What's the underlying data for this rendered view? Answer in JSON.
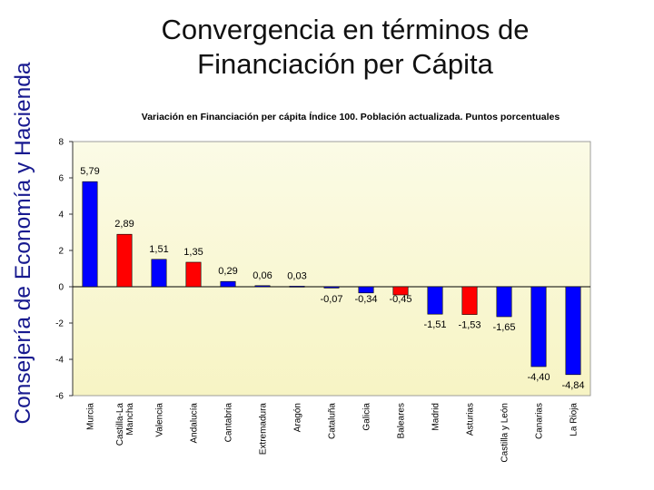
{
  "side_title": "Consejería de Economía y Hacienda",
  "slide_title": [
    "Convergencia en términos de",
    "Financiación per Cápita"
  ],
  "chart_data": {
    "type": "bar",
    "title": "Variación en Financiación per cápita Índice 100. Población actualizada. Puntos porcentuales",
    "xlabel": "",
    "ylabel": "",
    "categories": [
      "Murcia",
      "Castilla-La Mancha",
      "Valencia",
      "Andalucía",
      "Cantabria",
      "Extremadura",
      "Aragón",
      "Cataluña",
      "Galicia",
      "Baleares",
      "Madrid",
      "Asturias",
      "Castilla y León",
      "Canarias",
      "La Rioja"
    ],
    "category_labels": [
      [
        "Murcia"
      ],
      [
        "Castilla-La",
        "Mancha"
      ],
      [
        "Valencia"
      ],
      [
        "Andalucía"
      ],
      [
        "Cantabria"
      ],
      [
        "Extremadura"
      ],
      [
        "Aragón"
      ],
      [
        "Cataluña"
      ],
      [
        "Galicia"
      ],
      [
        "Baleares"
      ],
      [
        "Madrid"
      ],
      [
        "Asturias"
      ],
      [
        "Castilla y León"
      ],
      [
        "Canarias"
      ],
      [
        "La Rioja"
      ]
    ],
    "values": [
      5.79,
      2.89,
      1.51,
      1.35,
      0.29,
      0.06,
      0.03,
      -0.07,
      -0.34,
      -0.45,
      -1.51,
      -1.53,
      -1.65,
      -4.4,
      -4.84
    ],
    "value_labels": [
      "5,79",
      "2,89",
      "1,51",
      "1,35",
      "0,29",
      "0,06",
      "0,03",
      "-0,07",
      "-0,34",
      "-0,45",
      "-1,51",
      "-1,53",
      "-1,65",
      "-4,40",
      "-4,84"
    ],
    "bar_colors": [
      "#0000ff",
      "#ff0000",
      "#0000ff",
      "#ff0000",
      "#0000ff",
      "#0000ff",
      "#0000ff",
      "#0000ff",
      "#0000ff",
      "#ff0000",
      "#0000ff",
      "#ff0000",
      "#0000ff",
      "#0000ff",
      "#0000ff"
    ],
    "ylim": [
      -6,
      8
    ],
    "yticks": [
      -6,
      -4,
      -2,
      0,
      2,
      4,
      6,
      8
    ],
    "grid": false,
    "legend": "none",
    "colors": {
      "plot_background_top": "#fbfbe6",
      "plot_background_bottom": "#f7f4c4",
      "blue": "#0000ff",
      "red": "#ff0000"
    }
  }
}
